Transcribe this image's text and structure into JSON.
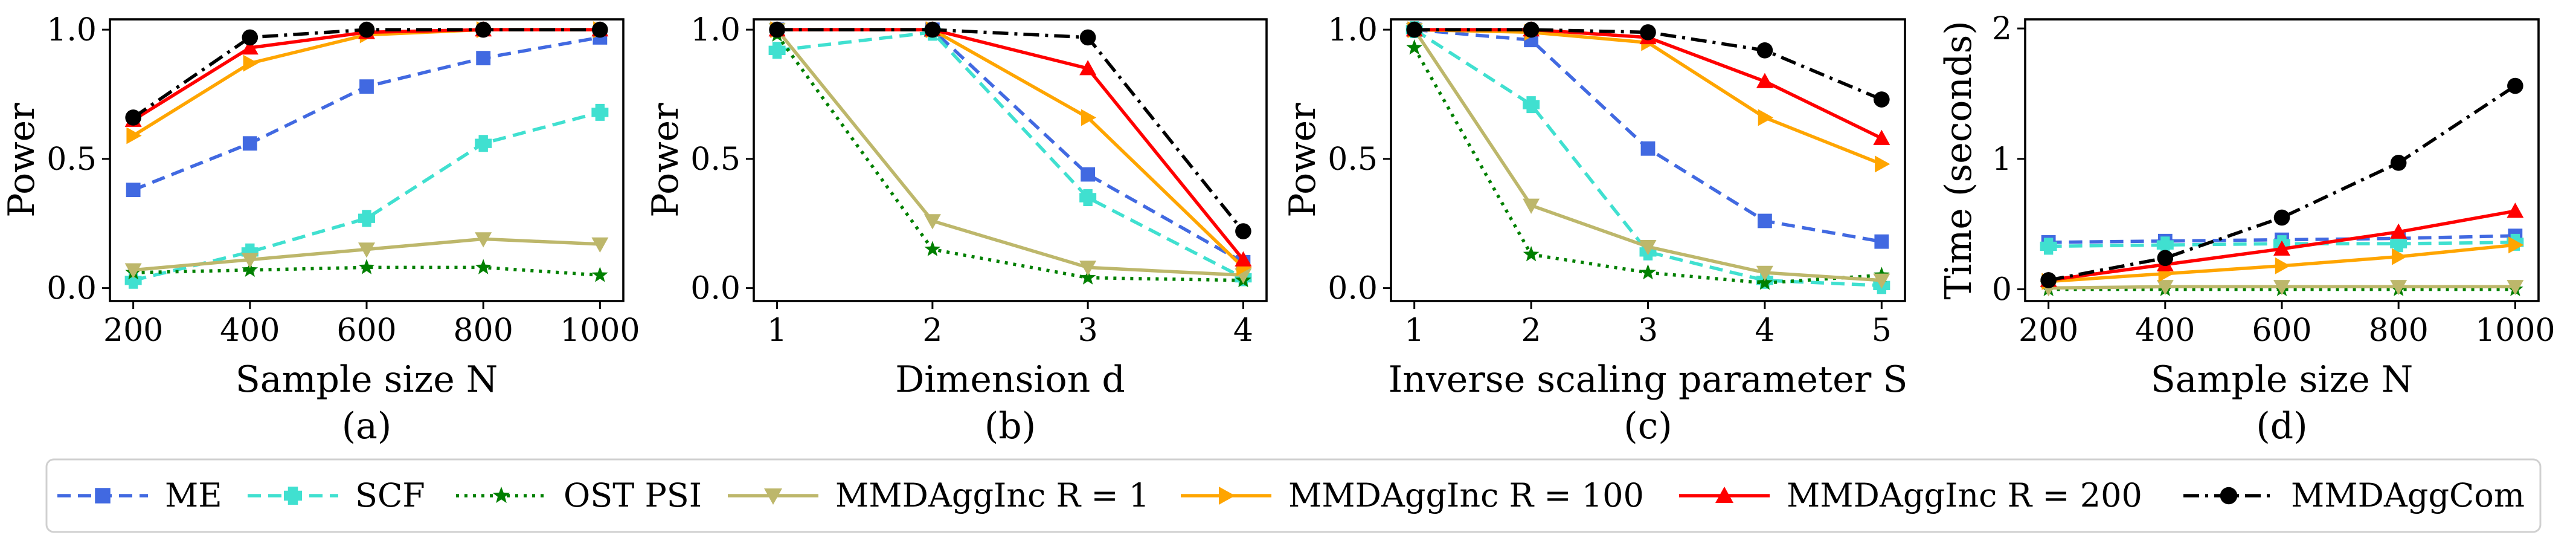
{
  "chart_data": [
    {
      "type": "line",
      "panel_label": "(a)",
      "xlabel": "Sample size N",
      "ylabel": "Power",
      "x": [
        200,
        400,
        600,
        800,
        1000
      ],
      "xticks": [
        "200",
        "400",
        "600",
        "800",
        "1000"
      ],
      "xlim": [
        160,
        1040
      ],
      "ylim": [
        -0.05,
        1.04
      ],
      "yticks": [
        "0.0",
        "0.5",
        "1.0"
      ],
      "series": [
        {
          "name": "ME",
          "values": [
            0.38,
            0.56,
            0.78,
            0.89,
            0.97
          ]
        },
        {
          "name": "SCF",
          "values": [
            0.03,
            0.14,
            0.27,
            0.56,
            0.68
          ]
        },
        {
          "name": "OST PSI",
          "values": [
            0.06,
            0.07,
            0.08,
            0.08,
            0.05
          ]
        },
        {
          "name": "MMDAggInc R = 1",
          "values": [
            0.07,
            0.11,
            0.15,
            0.19,
            0.17
          ]
        },
        {
          "name": "MMDAggInc R = 100",
          "values": [
            0.59,
            0.87,
            0.98,
            1.0,
            1.0
          ]
        },
        {
          "name": "MMDAggInc R = 200",
          "values": [
            0.65,
            0.93,
            0.99,
            1.0,
            1.0
          ]
        },
        {
          "name": "MMDAggCom",
          "values": [
            0.66,
            0.97,
            1.0,
            1.0,
            1.0
          ]
        }
      ]
    },
    {
      "type": "line",
      "panel_label": "(b)",
      "xlabel": "Dimension d",
      "ylabel": "Power",
      "x": [
        1,
        2,
        3,
        4
      ],
      "xticks": [
        "1",
        "2",
        "3",
        "4"
      ],
      "xlim": [
        0.85,
        4.15
      ],
      "ylim": [
        -0.05,
        1.04
      ],
      "yticks": [
        "0.0",
        "0.5",
        "1.0"
      ],
      "series": [
        {
          "name": "ME",
          "values": [
            1.0,
            1.0,
            0.44,
            0.1
          ]
        },
        {
          "name": "SCF",
          "values": [
            0.92,
            0.99,
            0.35,
            0.04
          ]
        },
        {
          "name": "OST PSI",
          "values": [
            0.98,
            0.15,
            0.04,
            0.03
          ]
        },
        {
          "name": "MMDAggInc R = 1",
          "values": [
            1.0,
            0.26,
            0.08,
            0.05
          ]
        },
        {
          "name": "MMDAggInc R = 100",
          "values": [
            1.0,
            1.0,
            0.66,
            0.08
          ]
        },
        {
          "name": "MMDAggInc R = 200",
          "values": [
            1.0,
            1.0,
            0.85,
            0.11
          ]
        },
        {
          "name": "MMDAggCom",
          "values": [
            1.0,
            1.0,
            0.97,
            0.22
          ]
        }
      ]
    },
    {
      "type": "line",
      "panel_label": "(c)",
      "xlabel": "Inverse scaling parameter S",
      "ylabel": "Power",
      "x": [
        1,
        2,
        3,
        4,
        5
      ],
      "xticks": [
        "1",
        "2",
        "3",
        "4",
        "5"
      ],
      "xlim": [
        0.8,
        5.2
      ],
      "ylim": [
        -0.05,
        1.04
      ],
      "yticks": [
        "0.0",
        "0.5",
        "1.0"
      ],
      "series": [
        {
          "name": "ME",
          "values": [
            1.0,
            0.96,
            0.54,
            0.26,
            0.18
          ]
        },
        {
          "name": "SCF",
          "values": [
            1.0,
            0.71,
            0.14,
            0.03,
            0.01
          ]
        },
        {
          "name": "OST PSI",
          "values": [
            0.93,
            0.13,
            0.06,
            0.02,
            0.05
          ]
        },
        {
          "name": "MMDAggInc R = 1",
          "values": [
            1.0,
            0.32,
            0.16,
            0.06,
            0.03
          ]
        },
        {
          "name": "MMDAggInc R = 100",
          "values": [
            1.0,
            0.99,
            0.95,
            0.66,
            0.48
          ]
        },
        {
          "name": "MMDAggInc R = 200",
          "values": [
            1.0,
            1.0,
            0.97,
            0.8,
            0.58
          ]
        },
        {
          "name": "MMDAggCom",
          "values": [
            1.0,
            1.0,
            0.99,
            0.92,
            0.73
          ]
        }
      ]
    },
    {
      "type": "line",
      "panel_label": "(d)",
      "xlabel": "Sample size N",
      "ylabel": "Time (seconds)",
      "x": [
        200,
        400,
        600,
        800,
        1000
      ],
      "xticks": [
        "200",
        "400",
        "600",
        "800",
        "1000"
      ],
      "xlim": [
        160,
        1040
      ],
      "ylim": [
        -0.09,
        2.07
      ],
      "yticks": [
        "0",
        "1",
        "2"
      ],
      "series": [
        {
          "name": "ME",
          "values": [
            0.36,
            0.37,
            0.38,
            0.39,
            0.41
          ]
        },
        {
          "name": "SCF",
          "values": [
            0.33,
            0.34,
            0.35,
            0.35,
            0.36
          ]
        },
        {
          "name": "OST PSI",
          "values": [
            0.0,
            0.0,
            0.0,
            0.0,
            0.0
          ]
        },
        {
          "name": "MMDAggInc R = 1",
          "values": [
            0.01,
            0.02,
            0.02,
            0.02,
            0.02
          ]
        },
        {
          "name": "MMDAggInc R = 100",
          "values": [
            0.06,
            0.12,
            0.18,
            0.25,
            0.34
          ]
        },
        {
          "name": "MMDAggInc R = 200",
          "values": [
            0.07,
            0.19,
            0.31,
            0.44,
            0.6
          ]
        },
        {
          "name": "MMDAggCom",
          "values": [
            0.07,
            0.24,
            0.55,
            0.97,
            1.56
          ]
        }
      ]
    }
  ],
  "legend": {
    "placement": "bottom",
    "entries": [
      "ME",
      "SCF",
      "OST PSI",
      "MMDAggInc R = 1",
      "MMDAggInc R = 100",
      "MMDAggInc R = 200",
      "MMDAggCom"
    ]
  },
  "series_styles": [
    {
      "color": "#4169e1",
      "dash": "dashed",
      "marker": "square"
    },
    {
      "color": "#40e0d0",
      "dash": "dashed",
      "marker": "plus"
    },
    {
      "color": "#008000",
      "dash": "dotted",
      "marker": "star"
    },
    {
      "color": "#bdb76b",
      "dash": "solid",
      "marker": "triangle-down"
    },
    {
      "color": "#ffa500",
      "dash": "solid",
      "marker": "triangle-right"
    },
    {
      "color": "#ff0000",
      "dash": "solid",
      "marker": "triangle-up"
    },
    {
      "color": "#000000",
      "dash": "dashdot",
      "marker": "circle"
    }
  ]
}
